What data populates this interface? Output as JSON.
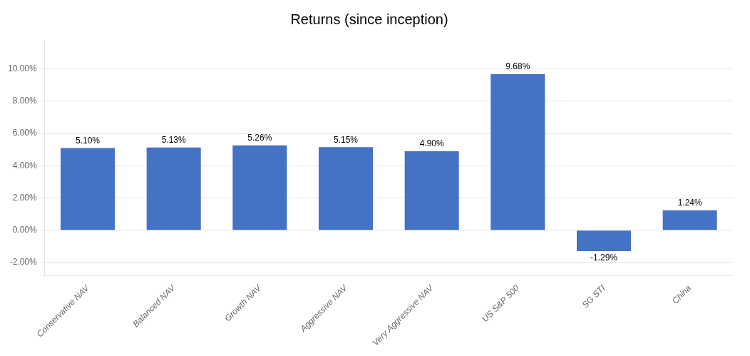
{
  "chart_data": {
    "type": "bar",
    "title": "Returns (since inception)",
    "categories": [
      "Conservative NAV",
      "Balanced NAV",
      "Growth NAV",
      "Aggressive NAV",
      "Very Aggressive NAV",
      "US S&P 500",
      "SG STI",
      "China"
    ],
    "values": [
      5.1,
      5.13,
      5.26,
      5.15,
      4.9,
      9.68,
      -1.29,
      1.24
    ],
    "value_labels": [
      "5.10%",
      "5.13%",
      "5.26%",
      "5.15%",
      "4.90%",
      "9.68%",
      "-1.29%",
      "1.24%"
    ],
    "color": "#4472C4",
    "ylim": [
      -2.8,
      11.8
    ],
    "yticks": [
      {
        "value": -2.0,
        "label": "-2.00%"
      },
      {
        "value": 0.0,
        "label": "0.00%"
      },
      {
        "value": 2.0,
        "label": "2.00%"
      },
      {
        "value": 4.0,
        "label": "4.00%"
      },
      {
        "value": 6.0,
        "label": "6.00%"
      },
      {
        "value": 8.0,
        "label": "8.00%"
      },
      {
        "value": 10.0,
        "label": "10.00%"
      }
    ],
    "grid": true,
    "data_labels": true
  }
}
